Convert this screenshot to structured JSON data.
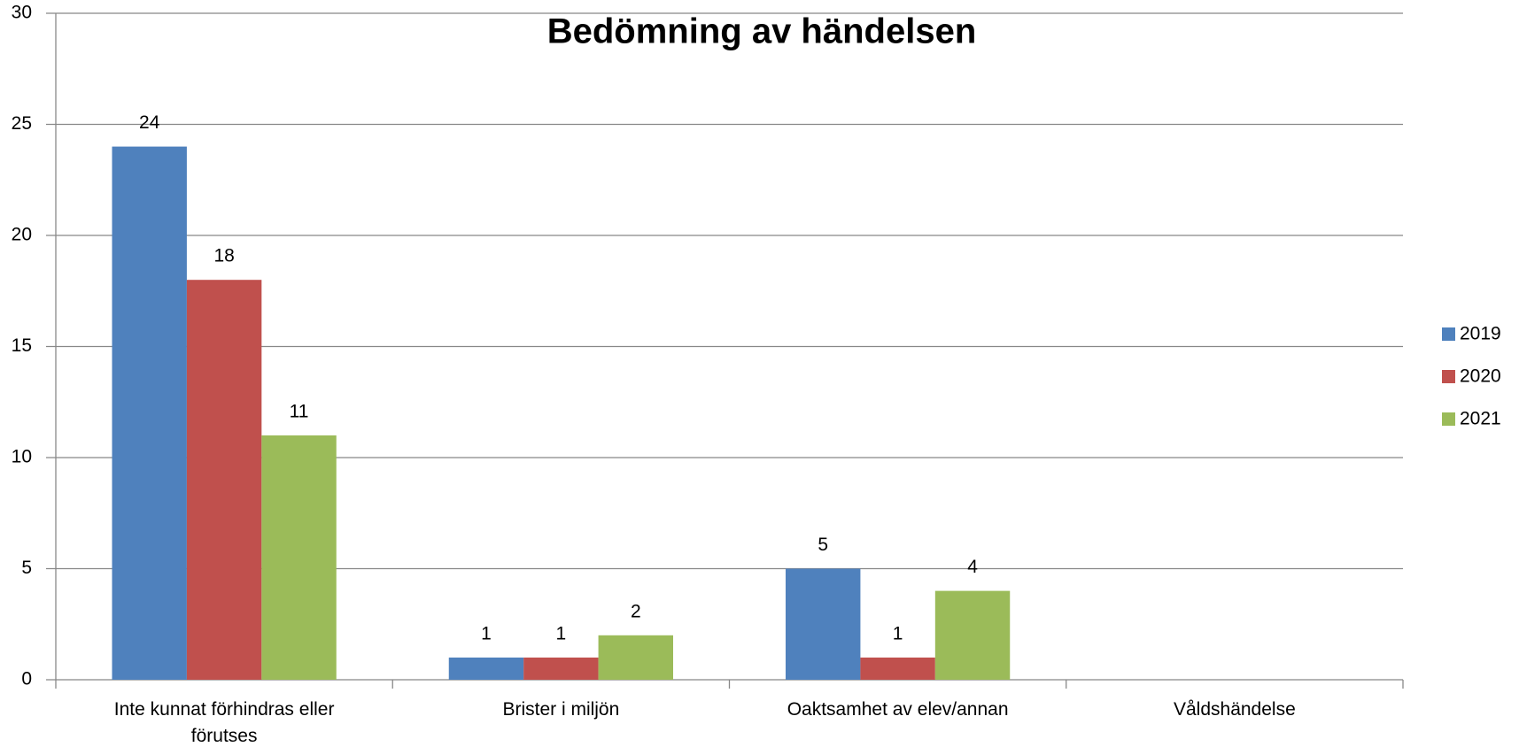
{
  "chart_data": {
    "type": "bar",
    "title": "Bedömning av händelsen",
    "categories": [
      "Inte kunnat förhindras eller förutses",
      "Brister i miljön",
      "Oaktsamhet av elev/annan",
      "Våldshändelse"
    ],
    "series": [
      {
        "name": "2019",
        "color": "#4f81bd",
        "values": [
          24,
          1,
          5,
          null
        ]
      },
      {
        "name": "2020",
        "color": "#c0504d",
        "values": [
          18,
          1,
          1,
          null
        ]
      },
      {
        "name": "2021",
        "color": "#9bbb59",
        "values": [
          11,
          2,
          4,
          null
        ]
      }
    ],
    "ylim": [
      0,
      30
    ],
    "yticks": [
      0,
      5,
      10,
      15,
      20,
      25,
      30
    ],
    "grid": true,
    "legend": "right"
  }
}
